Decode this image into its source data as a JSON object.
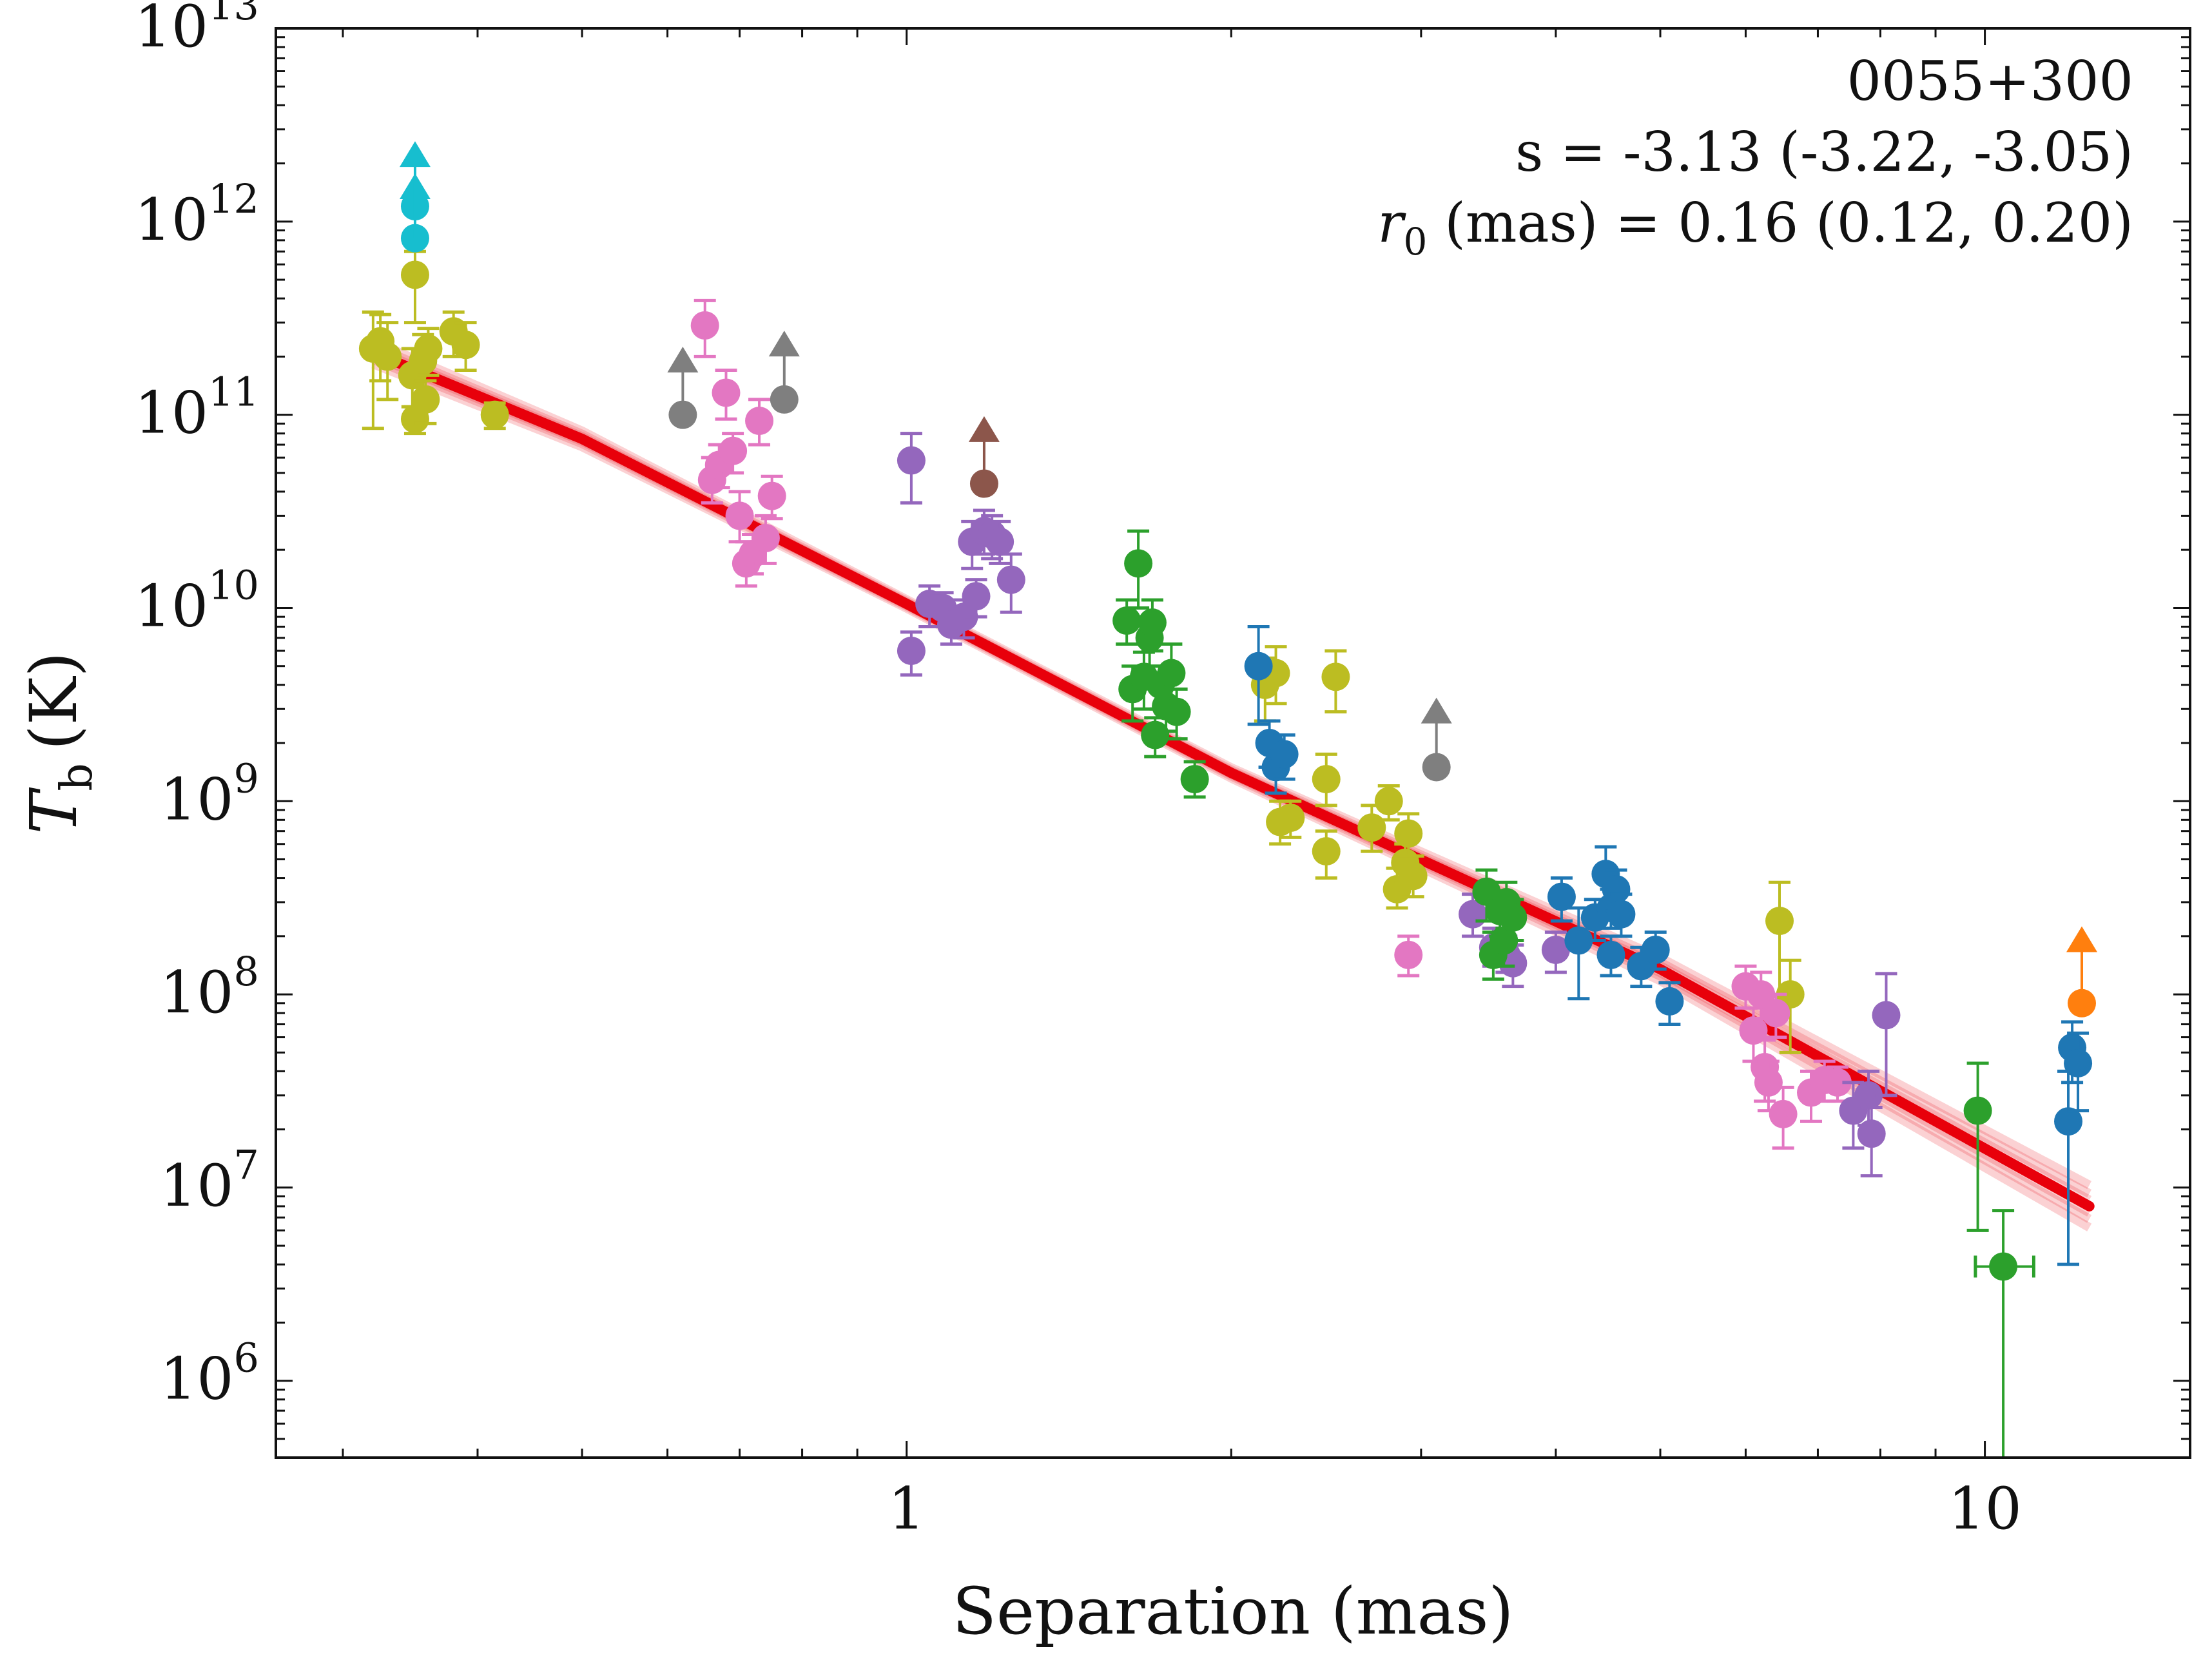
{
  "chart_data": {
    "type": "scatter",
    "xlabel": "Separation (mas)",
    "ylabel_main": "T",
    "ylabel_sub": "b",
    "ylabel_unit": "(K)",
    "xscale": "log",
    "yscale": "log",
    "xlim": [
      0.26,
      15.5
    ],
    "ylim": [
      400000.0,
      10000000000000.0
    ],
    "x_ticks": [
      {
        "value": 1,
        "label": "1"
      },
      {
        "value": 10,
        "label": "10"
      }
    ],
    "y_ticks": [
      {
        "value": 1000000.0,
        "base": "10",
        "exp": "6"
      },
      {
        "value": 10000000.0,
        "base": "10",
        "exp": "7"
      },
      {
        "value": 100000000.0,
        "base": "10",
        "exp": "8"
      },
      {
        "value": 1000000000.0,
        "base": "10",
        "exp": "9"
      },
      {
        "value": 10000000000.0,
        "base": "10",
        "exp": "10"
      },
      {
        "value": 100000000000.0,
        "base": "10",
        "exp": "11"
      },
      {
        "value": 1000000000000.0,
        "base": "10",
        "exp": "12"
      },
      {
        "value": 10000000000000.0,
        "base": "10",
        "exp": "13"
      }
    ],
    "annotations": {
      "source": "0055+300",
      "slope": "s = -3.13 (-3.22, -3.05)",
      "r0_sym": "r",
      "r0_sub": "0",
      "r0_text": " (mas) = 0.16 (0.12, 0.20)"
    },
    "fit": {
      "color": "#e8000b",
      "x": [
        0.32,
        0.5,
        1,
        2,
        5,
        12.5
      ],
      "y": [
        210000000000.0,
        75000000000.0,
        10500000000.0,
        1400000000.0,
        135000000.0,
        8000000.0
      ]
    },
    "series": [
      {
        "color": "#bcbd22",
        "points": [
          {
            "x": 0.32,
            "y": 220000000000.0,
            "lo": 85000000000.0,
            "hi": 340000000000.0
          },
          {
            "x": 0.325,
            "y": 240000000000.0,
            "lo": 150000000000.0,
            "hi": 330000000000.0
          },
          {
            "x": 0.33,
            "y": 200000000000.0,
            "lo": 120000000000.0,
            "hi": 300000000000.0
          },
          {
            "x": 0.348,
            "y": 160000000000.0,
            "lo": 110000000000.0,
            "hi": 220000000000.0
          },
          {
            "x": 0.35,
            "y": 530000000000.0,
            "lo": 300000000000.0,
            "hi": 700000000000.0
          },
          {
            "x": 0.35,
            "y": 95000000000.0,
            "lo": 80000000000.0,
            "hi": 110000000000.0
          },
          {
            "x": 0.356,
            "y": 190000000000.0,
            "lo": 120000000000.0,
            "hi": 260000000000.0
          },
          {
            "x": 0.358,
            "y": 120000000000.0,
            "lo": 90000000000.0,
            "hi": 150000000000.0
          },
          {
            "x": 0.36,
            "y": 220000000000.0,
            "lo": 160000000000.0,
            "hi": 280000000000.0
          },
          {
            "x": 0.38,
            "y": 270000000000.0,
            "lo": 200000000000.0,
            "hi": 340000000000.0
          },
          {
            "x": 0.39,
            "y": 230000000000.0,
            "lo": 170000000000.0,
            "hi": 300000000000.0
          },
          {
            "x": 0.415,
            "y": 100000000000.0,
            "lo": 85000000000.0,
            "hi": 115000000000.0
          },
          {
            "x": 2.15,
            "y": 4000000000.0,
            "lo": 2600000000.0,
            "hi": 5500000000.0
          },
          {
            "x": 2.2,
            "y": 4600000000.0,
            "lo": 3200000000.0,
            "hi": 6300000000.0
          },
          {
            "x": 2.22,
            "y": 780000000.0,
            "lo": 600000000.0,
            "hi": 1000000000.0
          },
          {
            "x": 2.27,
            "y": 820000000.0,
            "lo": 650000000.0,
            "hi": 1000000000.0
          },
          {
            "x": 2.45,
            "y": 1300000000.0,
            "lo": 950000000.0,
            "hi": 1750000000.0
          },
          {
            "x": 2.45,
            "y": 550000000.0,
            "lo": 400000000.0,
            "hi": 700000000.0
          },
          {
            "x": 2.5,
            "y": 4400000000.0,
            "lo": 2900000000.0,
            "hi": 6000000000.0
          },
          {
            "x": 2.7,
            "y": 730000000.0,
            "lo": 550000000.0,
            "hi": 950000000.0
          },
          {
            "x": 2.8,
            "y": 1000000000.0,
            "lo": 800000000.0,
            "hi": 1200000000.0
          },
          {
            "x": 2.85,
            "y": 350000000.0,
            "lo": 280000000.0,
            "hi": 450000000.0
          },
          {
            "x": 2.9,
            "y": 480000000.0,
            "lo": 380000000.0,
            "hi": 600000000.0
          },
          {
            "x": 2.92,
            "y": 680000000.0,
            "lo": 520000000.0,
            "hi": 860000000.0
          },
          {
            "x": 2.95,
            "y": 410000000.0,
            "lo": 320000000.0,
            "hi": 520000000.0
          },
          {
            "x": 6.45,
            "y": 240000000.0,
            "lo": 100000000.0,
            "hi": 380000000.0
          },
          {
            "x": 6.6,
            "y": 100000000.0,
            "lo": 50000000.0,
            "hi": 150000000.0
          }
        ]
      },
      {
        "color": "#17becf",
        "points": [
          {
            "x": 0.35,
            "y": 820000000000.0,
            "lo": 820000000000.0,
            "hi": 820000000000.0
          },
          {
            "x": 0.35,
            "y": 1200000000000.0,
            "lo": 1200000000000.0,
            "hi": 1200000000000.0
          }
        ],
        "limits": [
          {
            "x": 0.35,
            "y": 1500000000000.0
          },
          {
            "x": 0.35,
            "y": 2200000000000.0
          }
        ]
      },
      {
        "color": "#e377c2",
        "points": [
          {
            "x": 0.65,
            "y": 290000000000.0,
            "lo": 200000000000.0,
            "hi": 390000000000.0
          },
          {
            "x": 0.66,
            "y": 46000000000.0,
            "lo": 35000000000.0,
            "hi": 60000000000.0
          },
          {
            "x": 0.67,
            "y": 55000000000.0,
            "lo": 42000000000.0,
            "hi": 70000000000.0
          },
          {
            "x": 0.68,
            "y": 130000000000.0,
            "lo": 95000000000.0,
            "hi": 170000000000.0
          },
          {
            "x": 0.69,
            "y": 65000000000.0,
            "lo": 50000000000.0,
            "hi": 80000000000.0
          },
          {
            "x": 0.7,
            "y": 30000000000.0,
            "lo": 22000000000.0,
            "hi": 40000000000.0
          },
          {
            "x": 0.71,
            "y": 17000000000.0,
            "lo": 13000000000.0,
            "hi": 22000000000.0
          },
          {
            "x": 0.72,
            "y": 19000000000.0,
            "lo": 15000000000.0,
            "hi": 24000000000.0
          },
          {
            "x": 0.73,
            "y": 93000000000.0,
            "lo": 70000000000.0,
            "hi": 120000000000.0
          },
          {
            "x": 0.74,
            "y": 23000000000.0,
            "lo": 17000000000.0,
            "hi": 30000000000.0
          },
          {
            "x": 0.75,
            "y": 38000000000.0,
            "lo": 29000000000.0,
            "hi": 48000000000.0
          },
          {
            "x": 2.92,
            "y": 160000000.0,
            "lo": 125000000.0,
            "hi": 200000000.0
          },
          {
            "x": 6.0,
            "y": 110000000.0,
            "lo": 85000000.0,
            "hi": 140000000.0
          },
          {
            "x": 6.1,
            "y": 65000000.0,
            "lo": 45000000.0,
            "hi": 85000000.0
          },
          {
            "x": 6.2,
            "y": 100000000.0,
            "lo": 75000000.0,
            "hi": 130000000.0
          },
          {
            "x": 6.25,
            "y": 42000000.0,
            "lo": 28000000.0,
            "hi": 58000000.0
          },
          {
            "x": 6.3,
            "y": 35000000.0,
            "lo": 25000000.0,
            "hi": 45000000.0
          },
          {
            "x": 6.4,
            "y": 80000000.0,
            "lo": 60000000.0,
            "hi": 100000000.0
          },
          {
            "x": 6.5,
            "y": 24000000.0,
            "lo": 16000000.0,
            "hi": 33000000.0
          },
          {
            "x": 6.9,
            "y": 31000000.0,
            "lo": 22000000.0,
            "hi": 40000000.0
          },
          {
            "x": 7.1,
            "y": 36000000.0,
            "lo": 28000000.0,
            "hi": 45000000.0
          },
          {
            "x": 7.3,
            "y": 35000000.0,
            "lo": 28000000.0,
            "hi": 42000000.0
          }
        ]
      },
      {
        "color": "#7f7f7f",
        "points": [
          {
            "x": 0.62,
            "y": 100000000000.0,
            "lo": 100000000000.0,
            "hi": 100000000000.0
          },
          {
            "x": 0.77,
            "y": 120000000000.0,
            "lo": 120000000000.0,
            "hi": 120000000000.0
          },
          {
            "x": 3.1,
            "y": 1500000000.0,
            "lo": 1500000000.0,
            "hi": 1500000000.0
          }
        ],
        "limits": [
          {
            "x": 0.62,
            "y": 190000000000.0
          },
          {
            "x": 0.77,
            "y": 230000000000.0
          },
          {
            "x": 3.1,
            "y": 2900000000.0
          }
        ]
      },
      {
        "color": "#8c564b",
        "points": [
          {
            "x": 1.18,
            "y": 44000000000.0,
            "lo": 44000000000.0,
            "hi": 44000000000.0
          }
        ],
        "limits": [
          {
            "x": 1.18,
            "y": 83000000000.0
          }
        ]
      },
      {
        "color": "#9467bd",
        "points": [
          {
            "x": 1.01,
            "y": 58000000000.0,
            "lo": 35000000000.0,
            "hi": 80000000000.0
          },
          {
            "x": 1.01,
            "y": 6000000000.0,
            "lo": 4500000000.0,
            "hi": 7500000000.0
          },
          {
            "x": 1.05,
            "y": 10500000000.0,
            "lo": 8000000000.0,
            "hi": 13000000000.0
          },
          {
            "x": 1.08,
            "y": 10000000000.0,
            "lo": 8000000000.0,
            "hi": 12000000000.0
          },
          {
            "x": 1.1,
            "y": 8200000000.0,
            "lo": 6500000000.0,
            "hi": 10000000000.0
          },
          {
            "x": 1.13,
            "y": 9000000000.0,
            "lo": 7000000000.0,
            "hi": 11000000000.0
          },
          {
            "x": 1.15,
            "y": 22000000000.0,
            "lo": 16000000000.0,
            "hi": 28000000000.0
          },
          {
            "x": 1.16,
            "y": 11500000000.0,
            "lo": 9000000000.0,
            "hi": 14000000000.0
          },
          {
            "x": 1.18,
            "y": 25000000000.0,
            "lo": 19000000000.0,
            "hi": 32000000000.0
          },
          {
            "x": 1.2,
            "y": 24000000000.0,
            "lo": 18000000000.0,
            "hi": 30000000000.0
          },
          {
            "x": 1.22,
            "y": 22000000000.0,
            "lo": 17000000000.0,
            "hi": 28000000000.0
          },
          {
            "x": 1.25,
            "y": 14000000000.0,
            "lo": 9500000000.0,
            "hi": 19000000000.0
          },
          {
            "x": 3.35,
            "y": 260000000.0,
            "lo": 200000000.0,
            "hi": 330000000.0
          },
          {
            "x": 3.5,
            "y": 175000000.0,
            "lo": 140000000.0,
            "hi": 220000000.0
          },
          {
            "x": 3.6,
            "y": 160000000.0,
            "lo": 130000000.0,
            "hi": 200000000.0
          },
          {
            "x": 3.65,
            "y": 145000000.0,
            "lo": 110000000.0,
            "hi": 180000000.0
          },
          {
            "x": 4.0,
            "y": 170000000.0,
            "lo": 130000000.0,
            "hi": 210000000.0
          },
          {
            "x": 7.55,
            "y": 25000000.0,
            "lo": 16000000.0,
            "hi": 35000000.0
          },
          {
            "x": 7.8,
            "y": 30000000.0,
            "lo": 21000000.0,
            "hi": 40000000.0
          },
          {
            "x": 7.85,
            "y": 19000000.0,
            "lo": 11500000.0,
            "hi": 26000000.0
          },
          {
            "x": 8.1,
            "y": 78000000.0,
            "lo": 30000000.0,
            "hi": 128000000.0
          }
        ]
      },
      {
        "color": "#2ca02c",
        "points": [
          {
            "x": 1.6,
            "y": 8600000000.0,
            "lo": 6500000000.0,
            "hi": 11000000000.0
          },
          {
            "x": 1.62,
            "y": 3800000000.0,
            "lo": 2600000000.0,
            "hi": 5000000000.0
          },
          {
            "x": 1.64,
            "y": 17000000000.0,
            "lo": 10000000000.0,
            "hi": 25000000000.0
          },
          {
            "x": 1.66,
            "y": 4400000000.0,
            "lo": 3000000000.0,
            "hi": 5900000000.0
          },
          {
            "x": 1.68,
            "y": 7000000000.0,
            "lo": 5000000000.0,
            "hi": 9000000000.0
          },
          {
            "x": 1.69,
            "y": 8400000000.0,
            "lo": 6000000000.0,
            "hi": 11000000000.0
          },
          {
            "x": 1.7,
            "y": 2200000000.0,
            "lo": 1700000000.0,
            "hi": 2700000000.0
          },
          {
            "x": 1.72,
            "y": 4000000000.0,
            "lo": 3000000000.0,
            "hi": 5000000000.0
          },
          {
            "x": 1.74,
            "y": 3100000000.0,
            "lo": 2300000000.0,
            "hi": 4000000000.0
          },
          {
            "x": 1.76,
            "y": 4600000000.0,
            "lo": 3300000000.0,
            "hi": 6500000000.0
          },
          {
            "x": 1.78,
            "y": 2900000000.0,
            "lo": 2100000000.0,
            "hi": 3800000000.0
          },
          {
            "x": 1.85,
            "y": 1300000000.0,
            "lo": 1050000000.0,
            "hi": 1600000000.0
          },
          {
            "x": 3.45,
            "y": 340000000.0,
            "lo": 240000000.0,
            "hi": 440000000.0
          },
          {
            "x": 3.5,
            "y": 160000000.0,
            "lo": 120000000.0,
            "hi": 210000000.0
          },
          {
            "x": 3.55,
            "y": 270000000.0,
            "lo": 200000000.0,
            "hi": 340000000.0
          },
          {
            "x": 3.58,
            "y": 190000000.0,
            "lo": 140000000.0,
            "hi": 240000000.0
          },
          {
            "x": 3.6,
            "y": 300000000.0,
            "lo": 220000000.0,
            "hi": 380000000.0
          },
          {
            "x": 3.65,
            "y": 250000000.0,
            "lo": 190000000.0,
            "hi": 310000000.0
          },
          {
            "x": 9.85,
            "y": 25000000.0,
            "lo": 6000000.0,
            "hi": 44000000.0
          },
          {
            "x": 10.4,
            "y": 3900000.0,
            "lo": 400000.0,
            "hi": 7600000.0,
            "xlo": 9.8,
            "xhi": 11.1
          }
        ]
      },
      {
        "color": "#1f77b4",
        "points": [
          {
            "x": 2.12,
            "y": 5000000000.0,
            "lo": 2500000000.0,
            "hi": 8000000000.0
          },
          {
            "x": 2.17,
            "y": 2000000000.0,
            "lo": 1500000000.0,
            "hi": 2600000000.0
          },
          {
            "x": 2.2,
            "y": 1500000000.0,
            "lo": 1100000000.0,
            "hi": 2000000000.0
          },
          {
            "x": 2.24,
            "y": 1750000000.0,
            "lo": 1300000000.0,
            "hi": 2200000000.0
          },
          {
            "x": 4.05,
            "y": 320000000.0,
            "lo": 240000000.0,
            "hi": 400000000.0
          },
          {
            "x": 4.2,
            "y": 190000000.0,
            "lo": 95000000.0,
            "hi": 280000000.0
          },
          {
            "x": 4.35,
            "y": 250000000.0,
            "lo": 190000000.0,
            "hi": 310000000.0
          },
          {
            "x": 4.45,
            "y": 420000000.0,
            "lo": 280000000.0,
            "hi": 580000000.0
          },
          {
            "x": 4.5,
            "y": 160000000.0,
            "lo": 125000000.0,
            "hi": 200000000.0
          },
          {
            "x": 4.5,
            "y": 280000000.0,
            "lo": 220000000.0,
            "hi": 350000000.0
          },
          {
            "x": 4.55,
            "y": 350000000.0,
            "lo": 270000000.0,
            "hi": 440000000.0
          },
          {
            "x": 4.6,
            "y": 260000000.0,
            "lo": 200000000.0,
            "hi": 330000000.0
          },
          {
            "x": 4.8,
            "y": 140000000.0,
            "lo": 110000000.0,
            "hi": 175000000.0
          },
          {
            "x": 4.95,
            "y": 170000000.0,
            "lo": 135000000.0,
            "hi": 210000000.0
          },
          {
            "x": 5.1,
            "y": 92000000.0,
            "lo": 70000000.0,
            "hi": 115000000.0
          },
          {
            "x": 11.95,
            "y": 22000000.0,
            "lo": 4000000.0,
            "hi": 40000000.0
          },
          {
            "x": 12.05,
            "y": 53000000.0,
            "lo": 35000000.0,
            "hi": 72000000.0
          },
          {
            "x": 12.2,
            "y": 44000000.0,
            "lo": 25000000.0,
            "hi": 63000000.0
          }
        ]
      },
      {
        "color": "#ff7f0e",
        "points": [
          {
            "x": 12.3,
            "y": 90000000.0,
            "lo": 90000000.0,
            "hi": 90000000.0
          }
        ],
        "limits": [
          {
            "x": 12.3,
            "y": 190000000.0
          }
        ]
      }
    ]
  }
}
